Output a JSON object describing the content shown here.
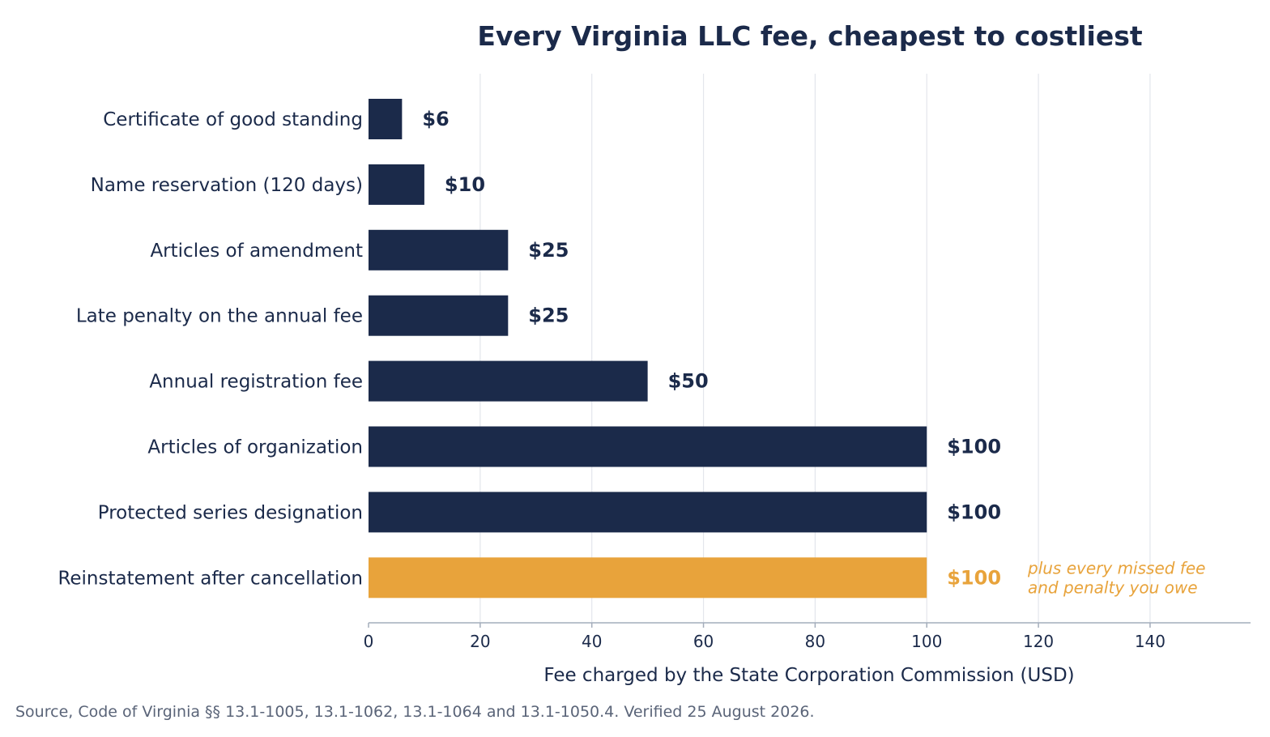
{
  "chart_data": {
    "type": "bar",
    "orientation": "horizontal",
    "title": "Every Virginia LLC fee, cheapest to costliest",
    "xlabel": "Fee charged by the State Corporation Commission (USD)",
    "categories": [
      "Certificate of good standing",
      "Name reservation (120 days)",
      "Articles of amendment",
      "Late penalty on the annual fee",
      "Annual registration fee",
      "Articles of organization",
      "Protected series designation",
      "Reinstatement after cancellation"
    ],
    "values": [
      6,
      10,
      25,
      25,
      50,
      100,
      100,
      100
    ],
    "value_labels": [
      "$6",
      "$10",
      "$25",
      "$25",
      "$50",
      "$100",
      "$100",
      "$100"
    ],
    "highlight_index": 7,
    "annotation": {
      "index": 7,
      "lines": [
        "plus every missed fee",
        "and penalty you owe"
      ]
    },
    "xlim": [
      0,
      158
    ],
    "xticks": [
      0,
      20,
      40,
      60,
      80,
      100,
      120,
      140
    ],
    "grid": true,
    "colors": {
      "bar": "#1b2a4a",
      "highlight": "#e8a33b",
      "text": "#1b2a4a"
    }
  },
  "source": "Source, Code of Virginia §§ 13.1-1005, 13.1-1062, 13.1-1064 and 13.1-1050.4. Verified 25 August 2026."
}
